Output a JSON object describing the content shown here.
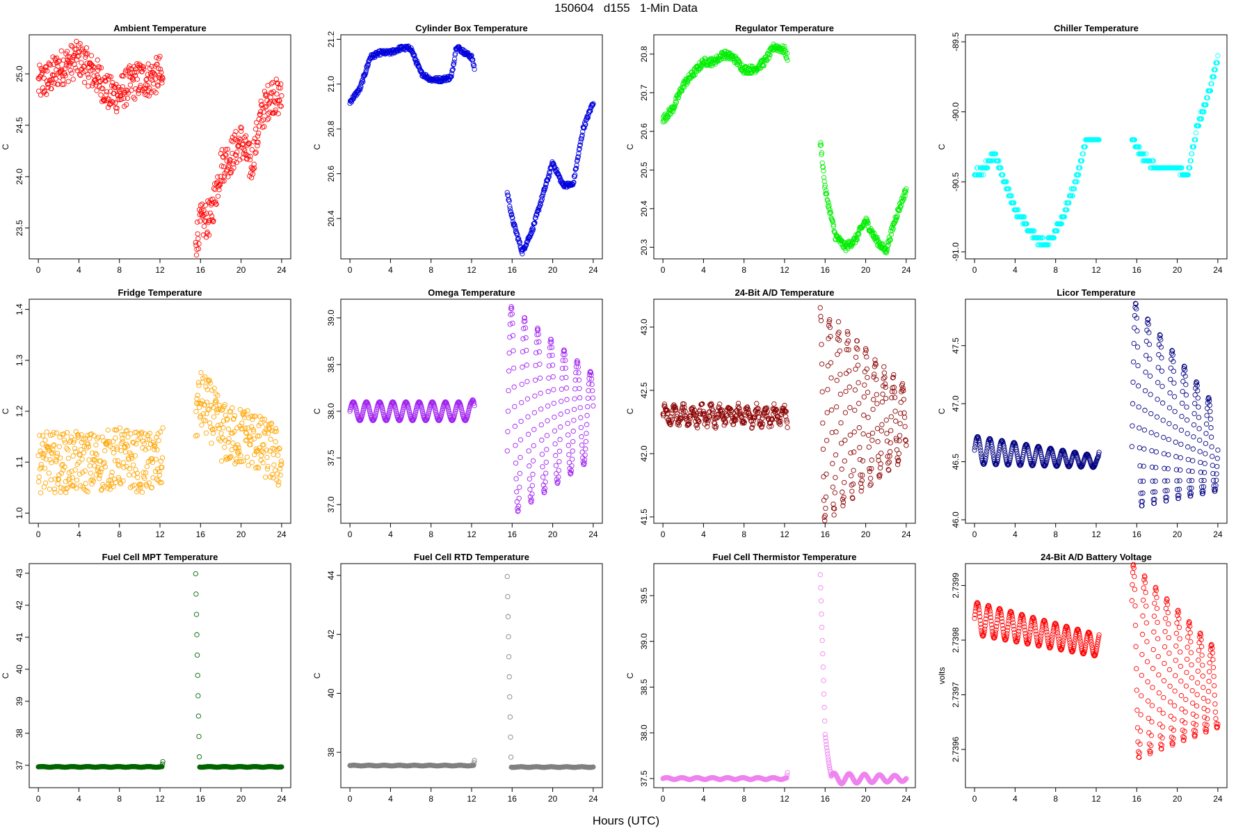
{
  "page_title": "150604   d155   1-Min Data",
  "x_axis_label": "Hours (UTC)",
  "chart_data": [
    {
      "type": "scatter",
      "title": "Ambient Temperature",
      "ylabel": "C",
      "color": "#ff0000",
      "xlim": [
        -0.9,
        24.9
      ],
      "ylim": [
        23.2,
        25.38
      ],
      "xticks": [
        0,
        4,
        8,
        12,
        16,
        20,
        24
      ],
      "yticks": [
        23.5,
        24.0,
        24.5,
        25.0
      ],
      "ytick_labels": [
        "23.5",
        "24.0",
        "24.5",
        "25.0"
      ],
      "x": [
        0,
        1,
        2,
        3,
        4,
        5,
        6,
        7,
        8,
        9,
        10,
        11,
        12,
        15.6,
        16,
        17,
        18,
        19,
        20,
        21,
        22,
        23,
        24
      ],
      "y": [
        24.9,
        24.95,
        25.05,
        25.1,
        25.15,
        25.05,
        24.95,
        24.8,
        24.8,
        24.9,
        24.95,
        24.95,
        25.0,
        23.4,
        23.55,
        23.6,
        24.1,
        24.2,
        24.35,
        24.1,
        24.6,
        24.8,
        24.75
      ],
      "noise": 0.18
    },
    {
      "type": "scatter",
      "title": "Cylinder Box Temperature",
      "ylabel": "C",
      "color": "#0000dd",
      "xlim": [
        -0.9,
        24.9
      ],
      "ylim": [
        20.22,
        21.22
      ],
      "xticks": [
        0,
        4,
        8,
        12,
        16,
        20,
        24
      ],
      "yticks": [
        20.4,
        20.6,
        20.8,
        21.0,
        21.2
      ],
      "ytick_labels": [
        "20.4",
        "20.6",
        "20.8",
        "21.0",
        "21.2"
      ],
      "x": [
        0,
        1,
        2,
        3,
        4,
        5,
        6,
        7,
        8,
        9,
        10,
        10.5,
        11,
        12,
        15.6,
        16,
        17,
        18,
        19,
        20,
        21,
        22,
        23,
        24
      ],
      "y": [
        20.92,
        20.98,
        21.12,
        21.14,
        21.14,
        21.16,
        21.16,
        21.05,
        21.02,
        21.02,
        21.03,
        21.17,
        21.15,
        21.12,
        20.5,
        20.4,
        20.25,
        20.35,
        20.5,
        20.65,
        20.55,
        20.55,
        20.8,
        20.92
      ],
      "noise": 0.01
    },
    {
      "type": "scatter",
      "title": "Regulator Temperature",
      "ylabel": "C",
      "color": "#00ee00",
      "xlim": [
        -0.9,
        24.9
      ],
      "ylim": [
        20.27,
        20.85
      ],
      "xticks": [
        0,
        4,
        8,
        12,
        16,
        20,
        24
      ],
      "yticks": [
        20.3,
        20.4,
        20.5,
        20.6,
        20.7,
        20.8
      ],
      "ytick_labels": [
        "20.3",
        "20.4",
        "20.5",
        "20.6",
        "20.7",
        "20.8"
      ],
      "x": [
        0,
        1,
        2,
        3,
        4,
        5,
        6,
        7,
        8,
        9,
        10,
        11,
        12,
        15.6,
        16,
        17,
        18,
        19,
        20,
        21,
        22,
        23,
        24
      ],
      "y": [
        20.63,
        20.66,
        20.72,
        20.75,
        20.78,
        20.78,
        20.8,
        20.79,
        20.76,
        20.76,
        20.78,
        20.82,
        20.81,
        20.56,
        20.45,
        20.33,
        20.3,
        20.32,
        20.37,
        20.32,
        20.29,
        20.38,
        20.45
      ],
      "noise": 0.01
    },
    {
      "type": "scatter",
      "title": "Chiller Temperature",
      "ylabel": "C",
      "color": "#00ffff",
      "xlim": [
        -0.9,
        24.9
      ],
      "ylim": [
        -91.05,
        -89.45
      ],
      "xticks": [
        0,
        4,
        8,
        12,
        16,
        20,
        24
      ],
      "yticks": [
        -91.0,
        -90.5,
        -90.0,
        -89.5
      ],
      "ytick_labels": [
        "-91.0",
        "-90.5",
        "-90.0",
        "-89.5"
      ],
      "x": [
        0,
        1,
        2,
        3,
        4,
        5,
        6,
        7,
        8,
        9,
        10,
        11,
        12,
        15.6,
        16,
        17,
        18,
        19,
        20,
        21,
        22,
        23,
        24
      ],
      "y": [
        -90.45,
        -90.4,
        -90.3,
        -90.5,
        -90.7,
        -90.8,
        -90.9,
        -90.95,
        -90.85,
        -90.7,
        -90.5,
        -90.2,
        -90.2,
        -90.2,
        -90.25,
        -90.35,
        -90.4,
        -90.4,
        -90.4,
        -90.45,
        -90.1,
        -89.9,
        -89.6
      ],
      "noise": 0.02,
      "quant": 0.05
    },
    {
      "type": "scatter",
      "title": "Fridge Temperature",
      "ylabel": "C",
      "color": "#ffa500",
      "xlim": [
        -0.9,
        24.9
      ],
      "ylim": [
        0.98,
        1.42
      ],
      "xticks": [
        0,
        4,
        8,
        12,
        16,
        20,
        24
      ],
      "yticks": [
        1.0,
        1.1,
        1.2,
        1.3,
        1.4
      ],
      "ytick_labels": [
        "1.0",
        "1.1",
        "1.2",
        "1.3",
        "1.4"
      ],
      "x": [
        0,
        2,
        4,
        6,
        8,
        10,
        12,
        15.6,
        16,
        17,
        18,
        19,
        20,
        21,
        22,
        23,
        24
      ],
      "y": [
        1.1,
        1.1,
        1.1,
        1.1,
        1.11,
        1.1,
        1.1,
        1.2,
        1.22,
        1.2,
        1.16,
        1.15,
        1.15,
        1.15,
        1.13,
        1.12,
        1.1
      ],
      "noise": 0.06
    },
    {
      "type": "scatter",
      "title": "Omega Temperature",
      "ylabel": "C",
      "color": "#a020f0",
      "xlim": [
        -0.9,
        24.9
      ],
      "ylim": [
        36.8,
        39.2
      ],
      "xticks": [
        0,
        4,
        8,
        12,
        16,
        20,
        24
      ],
      "yticks": [
        37.0,
        37.5,
        38.0,
        38.5,
        39.0
      ],
      "ytick_labels": [
        "37.0",
        "37.5",
        "38.0",
        "38.5",
        "39.0"
      ],
      "x": [
        0,
        12,
        15.6,
        24
      ],
      "y": [
        38.0,
        38.0,
        38.0,
        37.95
      ],
      "osc": [
        0.1,
        0.1,
        1.15,
        0.45
      ],
      "period": 1.3
    },
    {
      "type": "scatter",
      "title": "24-Bit A/D Temperature",
      "ylabel": "C",
      "color": "#8b0000",
      "xlim": [
        -0.9,
        24.9
      ],
      "ylim": [
        41.45,
        43.22
      ],
      "xticks": [
        0,
        4,
        8,
        12,
        16,
        20,
        24
      ],
      "yticks": [
        41.5,
        42.0,
        42.5,
        43.0
      ],
      "ytick_labels": [
        "41.5",
        "42.0",
        "42.5",
        "43.0"
      ],
      "x": [
        0,
        12,
        15.6,
        24
      ],
      "y": [
        42.3,
        42.3,
        42.3,
        42.25
      ],
      "osc": [
        0.06,
        0.06,
        0.85,
        0.25
      ],
      "period": 0.9,
      "noise": 0.04
    },
    {
      "type": "scatter",
      "title": "Licor Temperature",
      "ylabel": "C",
      "color": "#000080",
      "xlim": [
        -0.9,
        24.9
      ],
      "ylim": [
        45.97,
        47.9
      ],
      "xticks": [
        0,
        4,
        8,
        12,
        16,
        20,
        24
      ],
      "yticks": [
        46.0,
        46.5,
        47.0,
        47.5
      ],
      "ytick_labels": [
        "46.0",
        "46.5",
        "47.0",
        "47.5"
      ],
      "x": [
        0,
        12.2,
        15.6,
        24
      ],
      "y": [
        46.6,
        46.5,
        47.0,
        46.6
      ],
      "osc": [
        0.12,
        0.05,
        0.9,
        0.35
      ],
      "period": 1.2
    },
    {
      "type": "scatter",
      "title": "Fuel Cell MPT Temperature",
      "ylabel": "C",
      "color": "#006400",
      "xlim": [
        -0.9,
        24.9
      ],
      "ylim": [
        36.3,
        43.3
      ],
      "xticks": [
        0,
        4,
        8,
        12,
        16,
        20,
        24
      ],
      "yticks": [
        37,
        38,
        39,
        40,
        41,
        42,
        43
      ],
      "ytick_labels": [
        "37",
        "38",
        "39",
        "40",
        "41",
        "42",
        "43"
      ],
      "x": [
        0,
        12.2,
        15.5,
        15.9,
        24
      ],
      "y": [
        36.95,
        36.95,
        43.3,
        36.95,
        36.95
      ],
      "osc": [
        0.01,
        0.01,
        0,
        0.01,
        0.01
      ],
      "period": 1.5
    },
    {
      "type": "scatter",
      "title": "Fuel Cell RTD Temperature",
      "ylabel": "C",
      "color": "#808080",
      "xlim": [
        -0.9,
        24.9
      ],
      "ylim": [
        36.8,
        44.4
      ],
      "xticks": [
        0,
        4,
        8,
        12,
        16,
        20,
        24
      ],
      "yticks": [
        38,
        40,
        42,
        44
      ],
      "ytick_labels": [
        "38",
        "40",
        "42",
        "44"
      ],
      "x": [
        0,
        12.2,
        15.5,
        15.9,
        24
      ],
      "y": [
        37.55,
        37.55,
        44.3,
        37.5,
        37.5
      ],
      "osc": [
        0.01,
        0.01,
        0,
        0.01,
        0.01
      ],
      "period": 1.5
    },
    {
      "type": "scatter",
      "title": "Fuel Cell Thermistor Temperature",
      "ylabel": "C",
      "color": "#ee82ee",
      "xlim": [
        -0.9,
        24.9
      ],
      "ylim": [
        37.4,
        39.85
      ],
      "xticks": [
        0,
        4,
        8,
        12,
        16,
        20,
        24
      ],
      "yticks": [
        37.5,
        38.0,
        38.5,
        39.0,
        39.5
      ],
      "ytick_labels": [
        "37.5",
        "38.0",
        "38.5",
        "39.0",
        "39.5"
      ],
      "x": [
        0,
        12.2,
        15.5,
        16.0,
        16.6,
        24
      ],
      "y": [
        37.5,
        37.5,
        39.8,
        38.0,
        37.5,
        37.5
      ],
      "osc": [
        0.01,
        0.01,
        0,
        0.02,
        0.06,
        0.03
      ],
      "period": 1.5
    },
    {
      "type": "scatter",
      "title": "24-Bit A/D Battery Voltage",
      "ylabel": "volts",
      "color": "#ff0000",
      "xlim": [
        -0.9,
        24.9
      ],
      "ylim": [
        2.73953,
        2.73994
      ],
      "xticks": [
        0,
        4,
        8,
        12,
        16,
        20,
        24
      ],
      "yticks": [
        2.7396,
        2.7397,
        2.7398,
        2.7399
      ],
      "ytick_labels": [
        "2.7396",
        "2.7397",
        "2.7398",
        "2.7399"
      ],
      "x": [
        0,
        12.2,
        15.6,
        24
      ],
      "y": [
        2.73984,
        2.73979,
        2.73976,
        2.73971
      ],
      "osc": [
        3e-05,
        2e-05,
        0.00018,
        7e-05
      ],
      "period": 1.1
    }
  ]
}
